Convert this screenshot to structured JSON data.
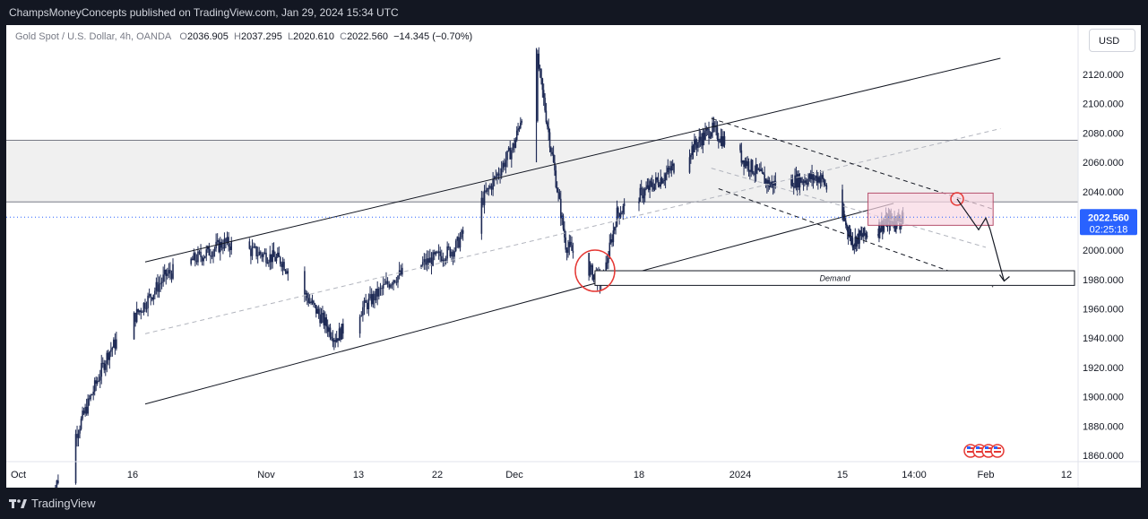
{
  "header": {
    "published": "ChampsMoneyConcepts published on TradingView.com, Jan 29, 2024 15:34 UTC"
  },
  "legend": {
    "symbol": "Gold Spot / U.S. Dollar, 4h, OANDA",
    "open_label": "O",
    "open": "2036.905",
    "high_label": "H",
    "high": "2037.295",
    "low_label": "L",
    "low": "2020.610",
    "close_label": "C",
    "close": "2022.560",
    "change": "−14.345 (−0.70%)"
  },
  "currency_button": "USD",
  "price_tag": {
    "price": "2022.560",
    "countdown": "02:25:18",
    "color": "#2962ff"
  },
  "footer": {
    "brand": "TradingView"
  },
  "colors": {
    "candle": "#1e2a55",
    "line": "#131722",
    "zone_fill": "#f0f0f0",
    "box_fill": "#f8d7e3",
    "circle": "#e53935"
  },
  "chart_data": {
    "type": "line",
    "symbol": "XAUUSD",
    "timeframe": "4h",
    "ylim": [
      1850,
      2140
    ],
    "y_ticks": [
      2120,
      2100,
      2080,
      2060,
      2040,
      2020,
      2000,
      1980,
      1960,
      1940,
      1920,
      1900,
      1880,
      1860
    ],
    "y_tick_labels": [
      "2120.000",
      "2100.000",
      "2080.000",
      "2060.000",
      "2040.000",
      "2020.000",
      "2000.000",
      "1980.000",
      "1960.000",
      "1940.000",
      "1920.000",
      "1900.000",
      "1880.000",
      "1860.000"
    ],
    "x_tick_labels": [
      "Oct",
      "16",
      "Nov",
      "13",
      "22",
      "Dec",
      "18",
      "2024",
      "15",
      "14:00",
      "Feb",
      "12"
    ],
    "last_price": 2022.56,
    "price_path_approx": [
      {
        "date": "Oct 6",
        "close": 1832
      },
      {
        "date": "Oct 13",
        "close": 1930
      },
      {
        "date": "Oct 20",
        "close": 1983
      },
      {
        "date": "Oct 27",
        "close": 2005
      },
      {
        "date": "Nov 3",
        "close": 1993
      },
      {
        "date": "Nov 10",
        "close": 1940
      },
      {
        "date": "Nov 17",
        "close": 1981
      },
      {
        "date": "Nov 24",
        "close": 2001
      },
      {
        "date": "Dec 1",
        "close": 2072
      },
      {
        "date": "Dec 4",
        "close": 2135
      },
      {
        "date": "Dec 8",
        "close": 2004
      },
      {
        "date": "Dec 13",
        "close": 1977
      },
      {
        "date": "Dec 15",
        "close": 2025
      },
      {
        "date": "Dec 22",
        "close": 2053
      },
      {
        "date": "Dec 28",
        "close": 2083
      },
      {
        "date": "Jan 5",
        "close": 2045
      },
      {
        "date": "Jan 12",
        "close": 2050
      },
      {
        "date": "Jan 17",
        "close": 2006
      },
      {
        "date": "Jan 24",
        "close": 2020
      },
      {
        "date": "Jan 29",
        "close": 2022.56
      }
    ],
    "horizontal_levels": [
      2075,
      2033
    ],
    "demand_zone": {
      "label": "Demand",
      "from": 1976,
      "to": 1986
    },
    "annotations": [
      "Demand"
    ]
  }
}
